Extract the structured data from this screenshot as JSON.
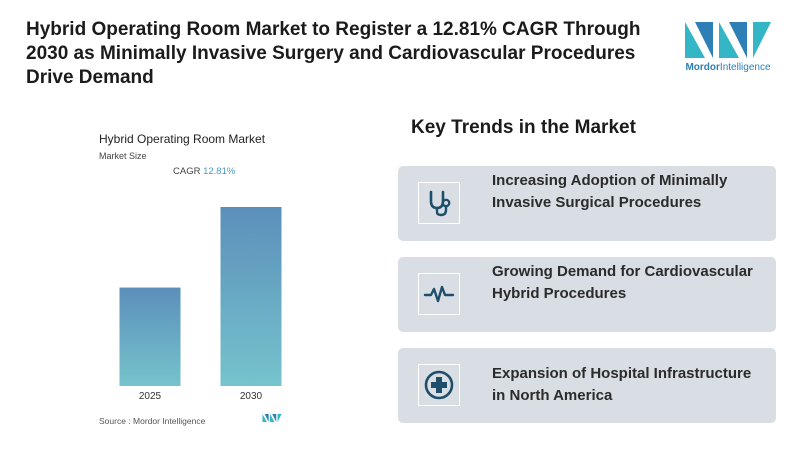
{
  "headline": "Hybrid Operating Room Market to Register a 12.81% CAGR Through 2030 as Minimally Invasive Surgery and Cardiovascular Procedures Drive Demand",
  "brand": {
    "name_part1": "Mordor",
    "name_part2": "Intelligence",
    "color": "#2d7fb5",
    "accent": "#35b6c6"
  },
  "chart_data": {
    "type": "bar",
    "title": "Hybrid Operating Room Market",
    "subtitle": "Market Size",
    "cagr_label": "CAGR",
    "cagr_value": "12.81%",
    "categories": [
      "2025",
      "2030"
    ],
    "values": [
      0.55,
      1.0
    ],
    "value_scale": "relative height (no axis printed)",
    "bar_gradient": [
      "#5b8fba",
      "#76c3cd"
    ],
    "source": "Source :  Mordor Intelligence"
  },
  "trends": {
    "title": "Key Trends in the Market",
    "items": [
      {
        "label": "Increasing Adoption of Minimally Invasive Surgical Procedures",
        "icon": "stethoscope-icon"
      },
      {
        "label": "Growing Demand for Cardiovascular Hybrid Procedures",
        "icon": "heartbeat-icon"
      },
      {
        "label": "Expansion of Hospital Infrastructure in North America",
        "icon": "medical-cross-icon"
      }
    ],
    "icon_color": "#1f4e6b",
    "card_color": "#d9dee4"
  }
}
